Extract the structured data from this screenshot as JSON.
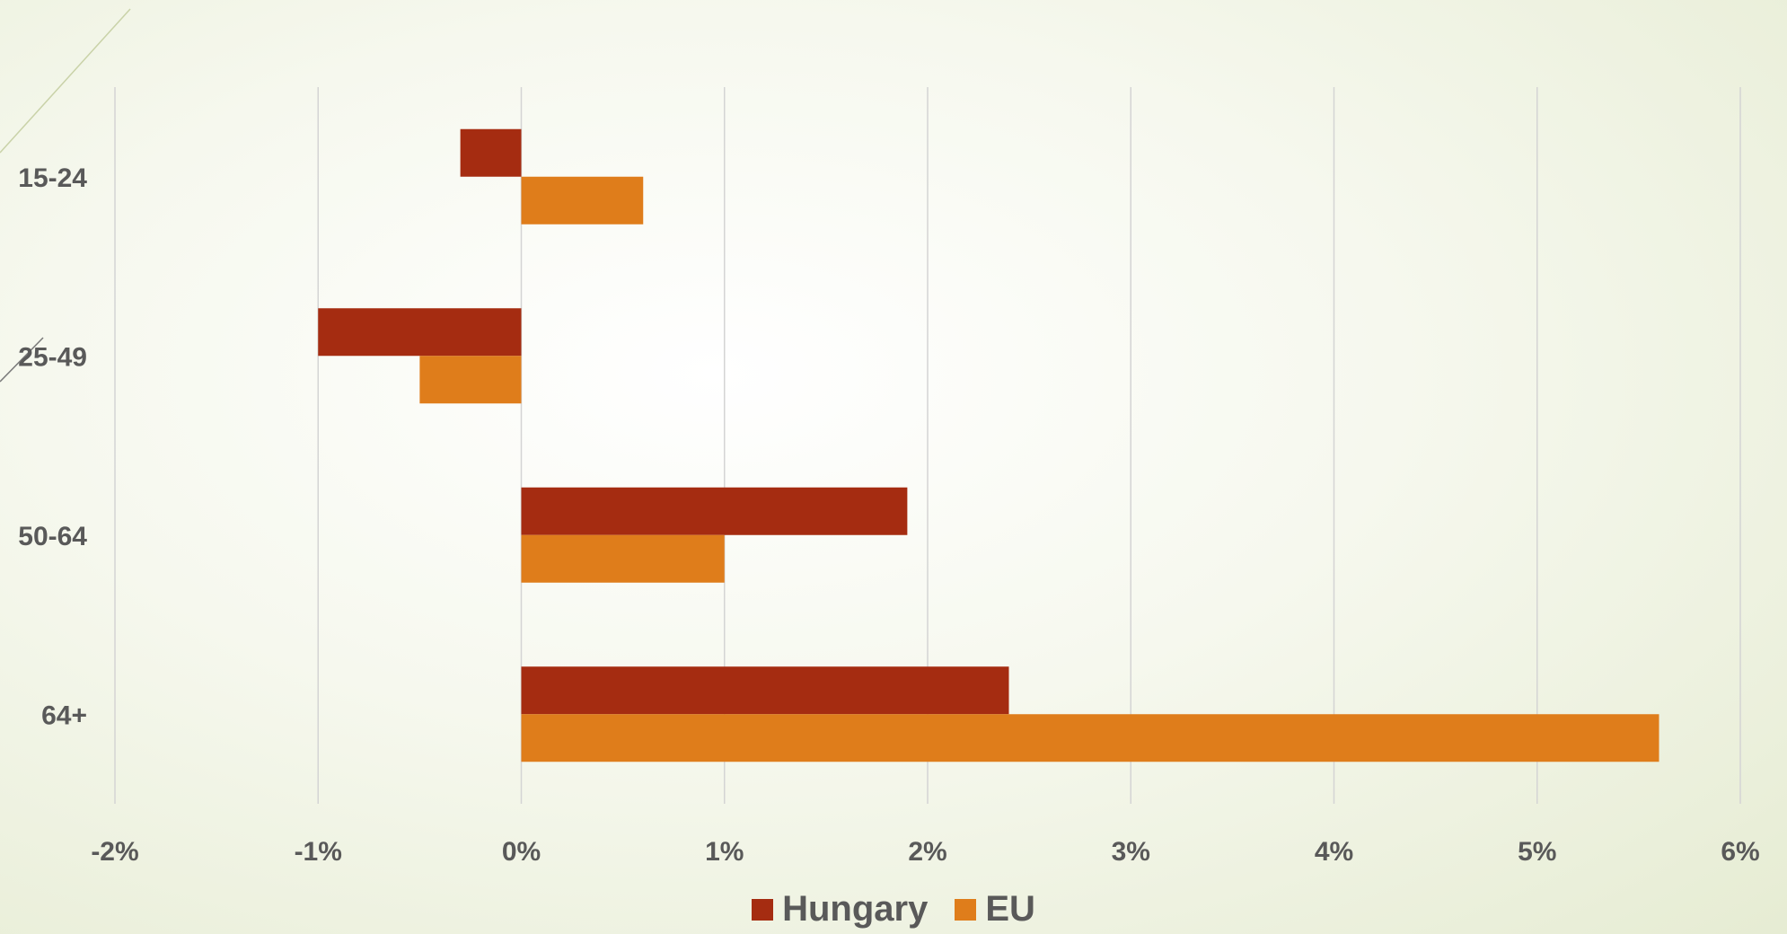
{
  "chart_data": {
    "type": "bar",
    "orientation": "horizontal",
    "categories": [
      "15-24",
      "25-49",
      "50-64",
      "64+"
    ],
    "series": [
      {
        "name": "Hungary",
        "color": "#a52c11",
        "values": [
          -0.3,
          -1.0,
          1.9,
          2.4
        ]
      },
      {
        "name": "EU",
        "color": "#df7d1b",
        "values": [
          0.6,
          -0.5,
          1.0,
          5.6
        ]
      }
    ],
    "xlim": [
      -2,
      6
    ],
    "xticks": [
      -2,
      -1,
      0,
      1,
      2,
      3,
      4,
      5,
      6
    ],
    "xtick_labels": [
      "-2%",
      "-1%",
      "0%",
      "1%",
      "2%",
      "3%",
      "4%",
      "5%",
      "6%"
    ],
    "grid": "vertical",
    "legend": "bottom-center",
    "title": "",
    "xlabel": "",
    "ylabel": ""
  }
}
